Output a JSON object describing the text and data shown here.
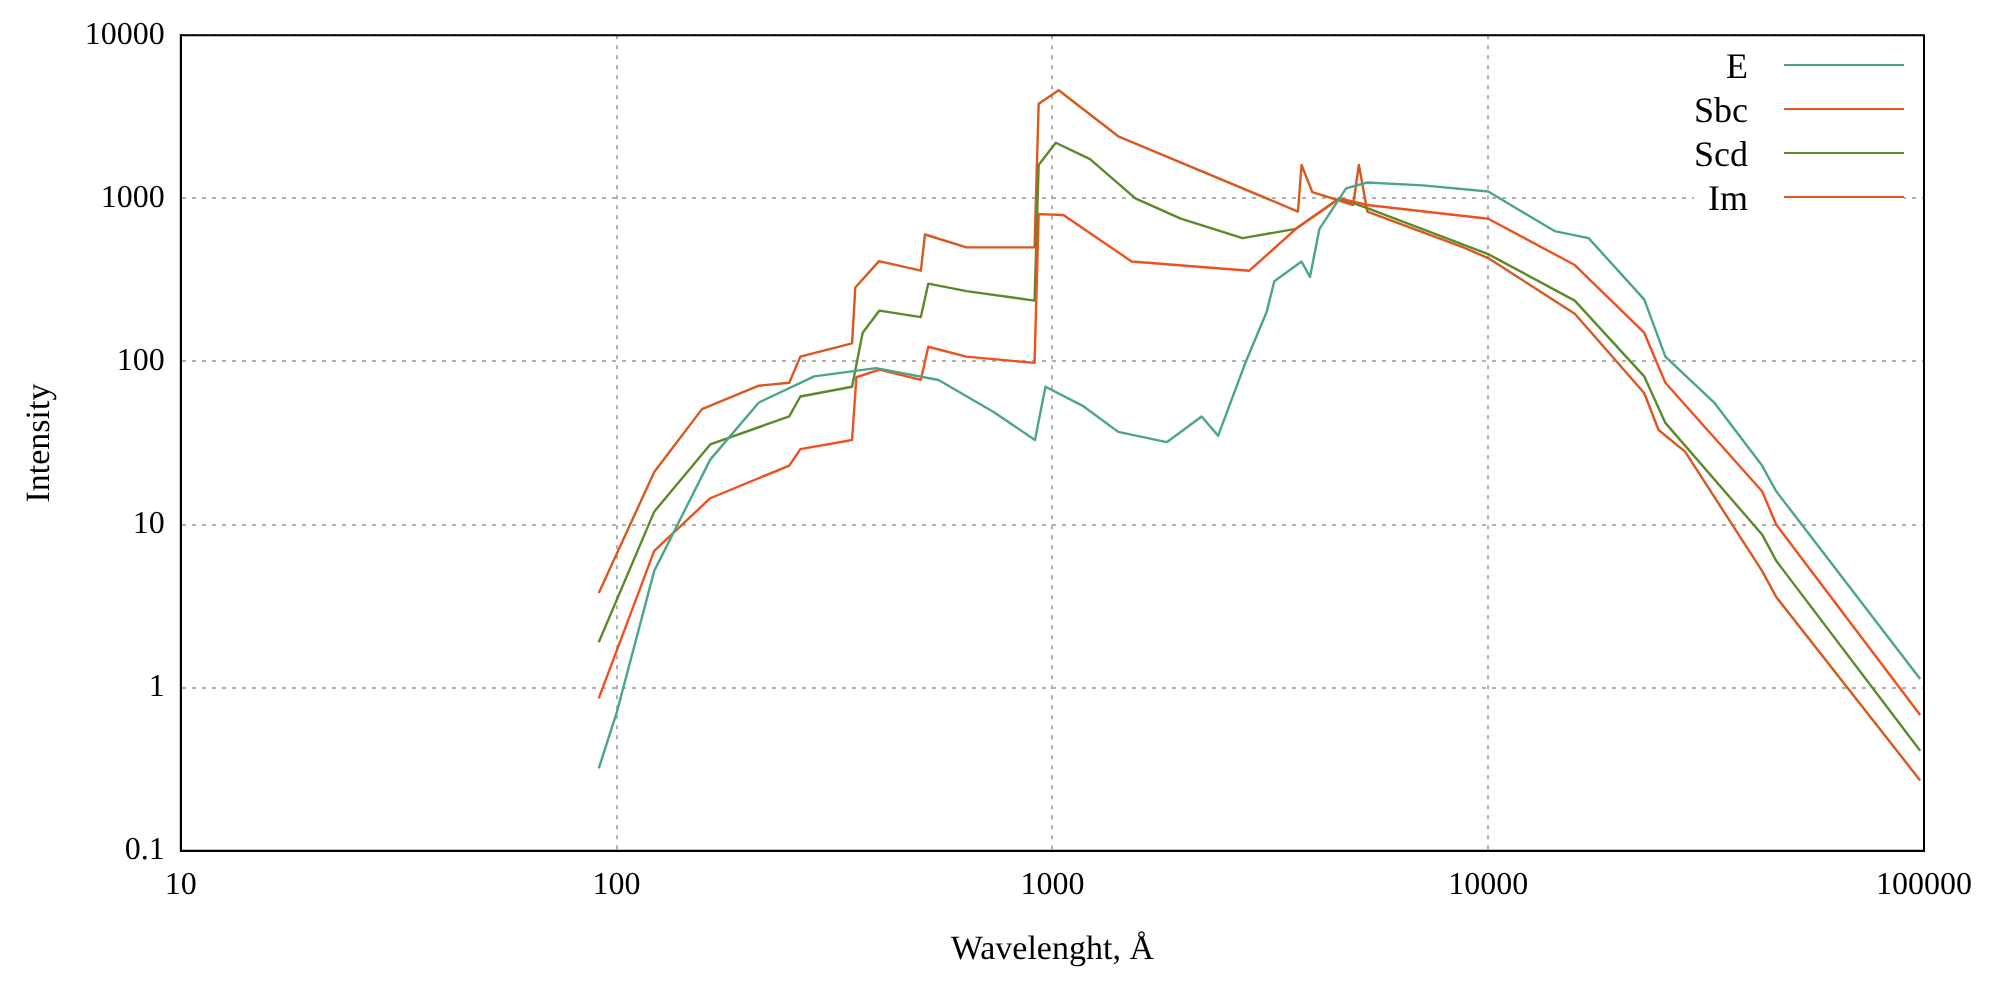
{
  "chart_data": {
    "type": "line",
    "xlabel": "Wavelenght, Å",
    "ylabel": "Intensity",
    "log": "xy",
    "grid": true,
    "legend": "top right",
    "marker": "none",
    "line_style": "solid",
    "xlim": [
      10,
      100000
    ],
    "xticks": [
      10,
      100,
      1000,
      10000,
      100000
    ],
    "ylim": [
      0.1,
      10000
    ],
    "yticks": [
      0.1,
      1,
      10,
      100,
      1000,
      10000
    ],
    "series": [
      {
        "name": "E",
        "color": "#4aa58a",
        "x": [
          91,
          100,
          122,
          164,
          212,
          284,
          394,
          548,
          733,
          912,
          964,
          1180,
          1416,
          1830,
          2200,
          2400,
          2780,
          3100,
          3230,
          3730,
          3900,
          4100,
          4720,
          5280,
          7080,
          10000,
          14200,
          17000,
          22800,
          25500,
          33000,
          42500,
          45800,
          98000
        ],
        "values": [
          0.32,
          0.7,
          5.2,
          25,
          56,
          81,
          91,
          77,
          49,
          33,
          70,
          53,
          37,
          32,
          46,
          35,
          100,
          200,
          310,
          410,
          330,
          650,
          1150,
          1250,
          1200,
          1100,
          630,
          570,
          240,
          107,
          56,
          23,
          16,
          1.13
        ]
      },
      {
        "name": "Sbc",
        "color": "#f0501e",
        "x": [
          91,
          122,
          164,
          249,
          264,
          347,
          355,
          401,
          499,
          519,
          635,
          910,
          930,
          1060,
          1520,
          2830,
          3620,
          4560,
          5280,
          10000,
          15800,
          22800,
          25500,
          42500,
          45800,
          98000
        ],
        "values": [
          0.86,
          6.9,
          14.5,
          23,
          29,
          33,
          80,
          89,
          77,
          123,
          107,
          98,
          800,
          790,
          410,
          360,
          650,
          1000,
          910,
          750,
          390,
          150,
          74,
          16,
          10,
          0.68
        ]
      },
      {
        "name": "Scd",
        "color": "#5a8a2a",
        "x": [
          91,
          122,
          164,
          249,
          264,
          347,
          367,
          401,
          499,
          519,
          635,
          910,
          930,
          1018,
          1220,
          1550,
          1970,
          2730,
          3620,
          4560,
          5280,
          10000,
          15800,
          22800,
          25500,
          42500,
          45800,
          98000
        ],
        "values": [
          1.9,
          12,
          31,
          46,
          61,
          70,
          150,
          205,
          187,
          300,
          270,
          236,
          1600,
          2190,
          1740,
          1000,
          750,
          570,
          650,
          1000,
          870,
          455,
          236,
          81,
          42,
          8.7,
          6,
          0.41
        ]
      },
      {
        "name": "Im",
        "color": "#d9581e",
        "x": [
          91,
          122,
          157,
          212,
          249,
          264,
          347,
          353,
          400,
          499,
          510,
          635,
          910,
          930,
          1034,
          1416,
          3660,
          3730,
          3950,
          4900,
          5050,
          5280,
          8770,
          10000,
          15800,
          22800,
          24600,
          28300,
          42500,
          45800,
          98000
        ],
        "values": [
          3.8,
          21,
          51,
          71,
          74,
          107,
          129,
          284,
          412,
          360,
          600,
          500,
          500,
          3800,
          4600,
          2400,
          830,
          1600,
          1090,
          910,
          1600,
          830,
          500,
          430,
          196,
          64,
          38,
          28,
          5.2,
          3.6,
          0.27
        ]
      }
    ]
  }
}
